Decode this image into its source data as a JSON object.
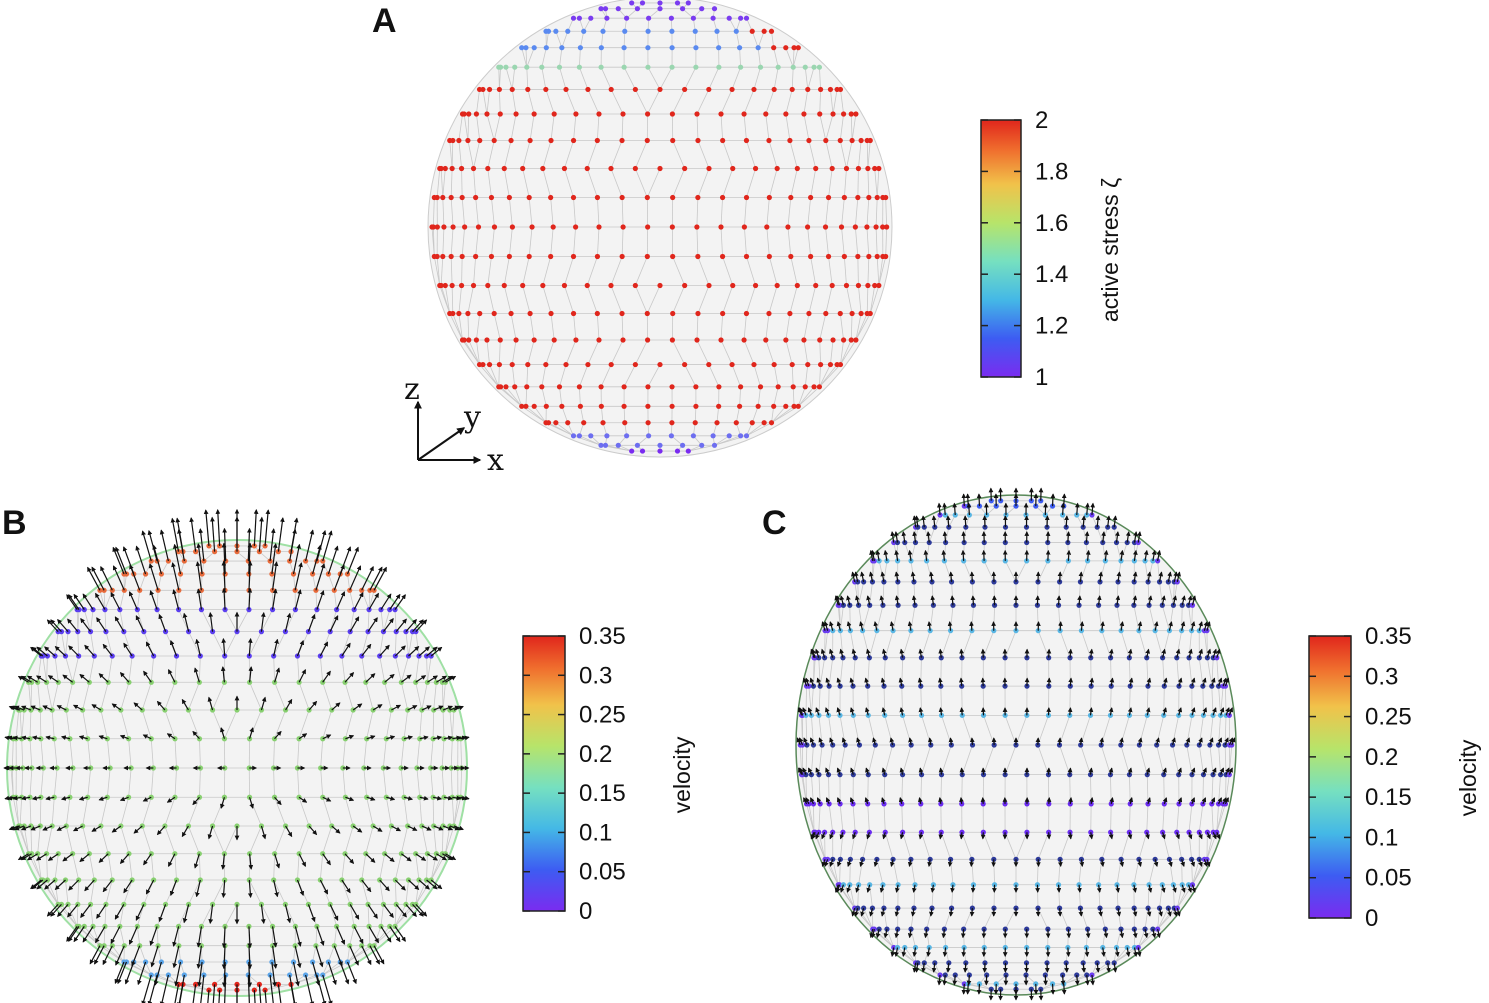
{
  "panels": {
    "a": {
      "letter": "A"
    },
    "b": {
      "letter": "B"
    },
    "c": {
      "letter": "C"
    }
  },
  "colorbar_a": {
    "label": "active stress ζ",
    "ticks": [
      "1",
      "1.2",
      "1.4",
      "1.6",
      "1.8",
      "2"
    ]
  },
  "colorbar_b": {
    "label": "velocity",
    "ticks": [
      "0",
      "0.05",
      "0.1",
      "0.15",
      "0.2",
      "0.25",
      "0.3",
      "0.35"
    ]
  },
  "colorbar_c": {
    "label": "velocity",
    "ticks": [
      "0",
      "0.05",
      "0.1",
      "0.15",
      "0.2",
      "0.25",
      "0.3",
      "0.35"
    ]
  },
  "axes_triad": {
    "z": "z",
    "y": "y",
    "x": "x"
  },
  "colors": {
    "high": "#e0261c",
    "mid": "#8fe08a",
    "low": "#7a2cf0",
    "mesh": "#bdbdbd",
    "arrow": "#111111"
  }
}
